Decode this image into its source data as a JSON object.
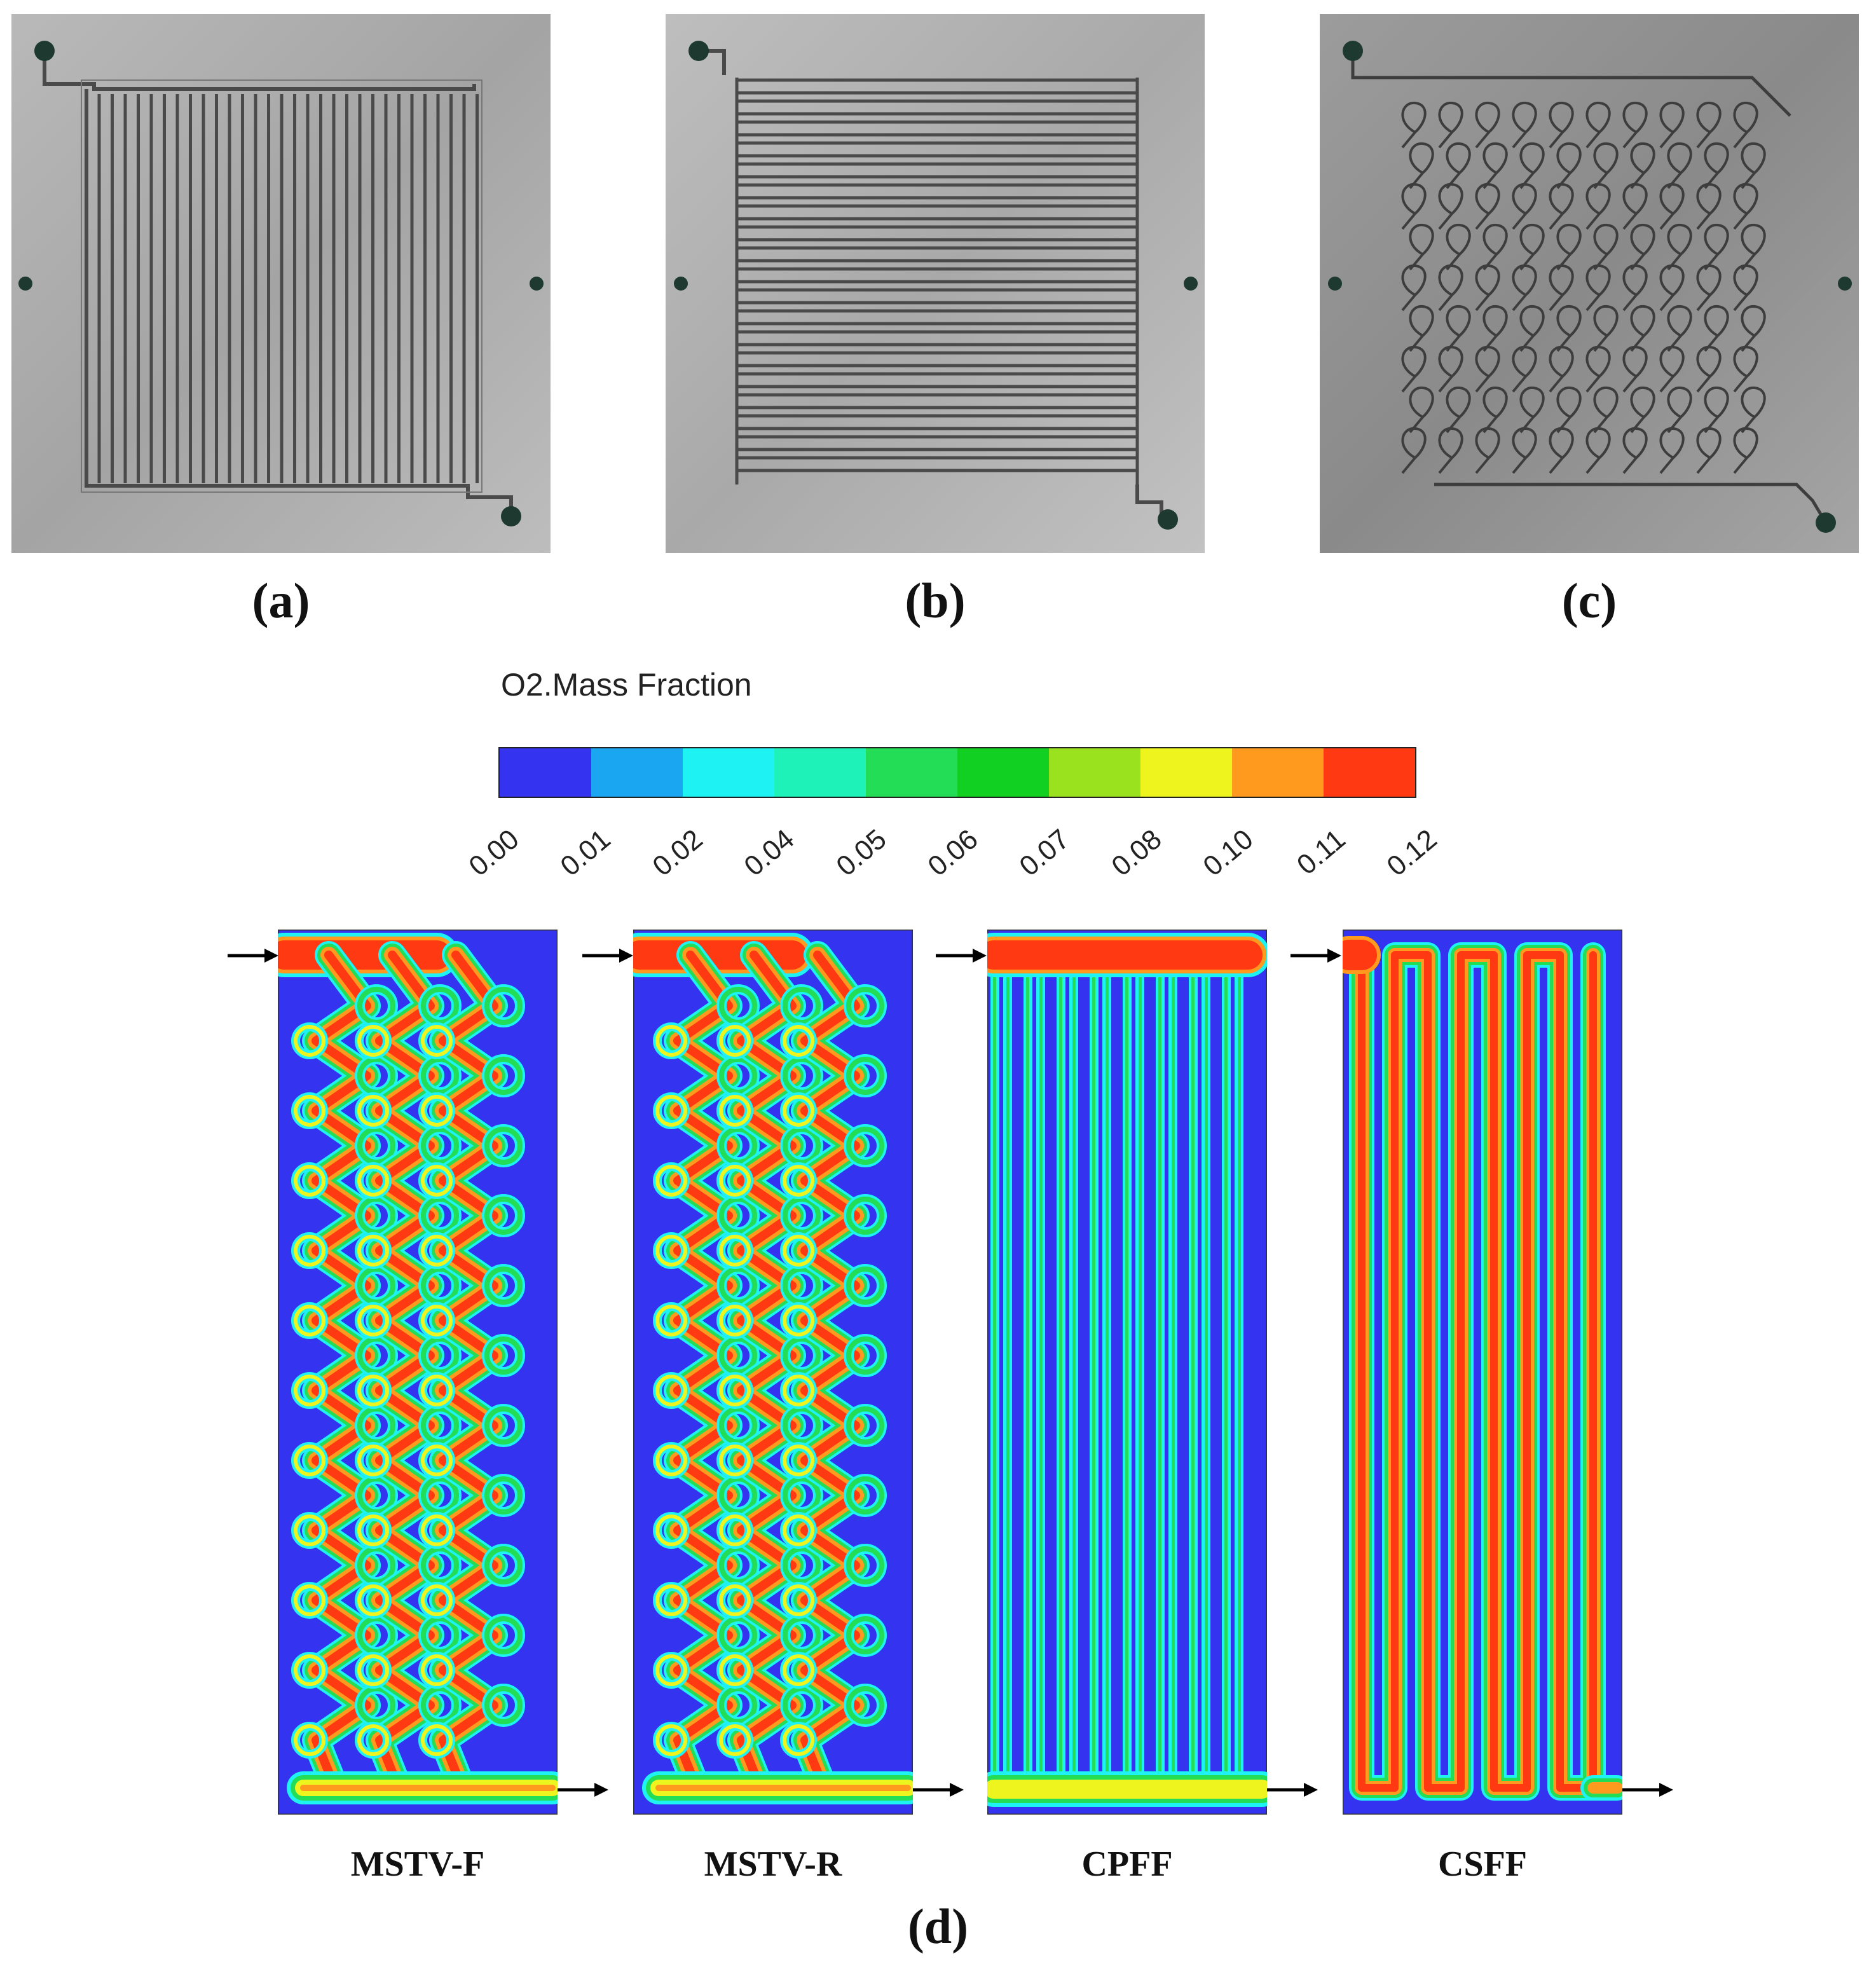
{
  "figure": {
    "plates": [
      {
        "label": "(a)",
        "pattern": "parallel"
      },
      {
        "label": "(b)",
        "pattern": "serpentine"
      },
      {
        "label": "(c)",
        "pattern": "leaf-vein"
      }
    ],
    "colorbar": {
      "title": "O2.Mass Fraction",
      "ticks": [
        "0.00",
        "0.01",
        "0.02",
        "0.04",
        "0.05",
        "0.06",
        "0.07",
        "0.08",
        "0.10",
        "0.11",
        "0.12"
      ],
      "colors": [
        "#3333f0",
        "#1aa6f0",
        "#1ef2f2",
        "#1ef2b8",
        "#22dd55",
        "#11d022",
        "#9be21e",
        "#eef41e",
        "#ff9a1e",
        "#ff3a12"
      ]
    },
    "simulations": [
      {
        "label": "MSTV-F",
        "pattern": "leaf-vein-forward"
      },
      {
        "label": "MSTV-R",
        "pattern": "leaf-vein-reverse"
      },
      {
        "label": "CPFF",
        "pattern": "parallel"
      },
      {
        "label": "CSFF",
        "pattern": "serpentine"
      }
    ],
    "caption": "(d)"
  }
}
